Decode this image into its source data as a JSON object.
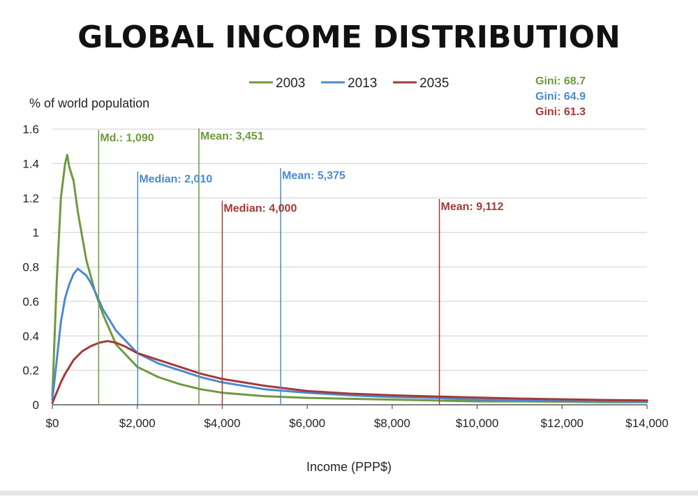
{
  "chart_data": {
    "type": "line",
    "title": "GLOBAL INCOME DISTRIBUTION",
    "xlabel": "Income (PPP$)",
    "ylabel": "% of world population",
    "xlim": [
      0,
      14000
    ],
    "ylim": [
      0,
      1.6
    ],
    "x_ticks": [
      0,
      2000,
      4000,
      6000,
      8000,
      10000,
      12000,
      14000
    ],
    "x_tick_labels": [
      "$0",
      "$2,000",
      "$4,000",
      "$6,000",
      "$8,000",
      "$10,000",
      "$12,000",
      "$14,000"
    ],
    "y_ticks": [
      0,
      0.2,
      0.4,
      0.6,
      0.8,
      1,
      1.2,
      1.4,
      1.6
    ],
    "y_tick_labels": [
      "0",
      "0.2",
      "0.4",
      "0.6",
      "0.8",
      "1",
      "1.2",
      "1.4",
      "1.6"
    ],
    "grid": true,
    "legend_position": "top-center",
    "series": [
      {
        "name": "2003",
        "color": "#6e9a3c",
        "x": [
          0,
          100,
          200,
          300,
          350,
          400,
          500,
          600,
          700,
          800,
          1000,
          1200,
          1500,
          2000,
          2500,
          3000,
          3500,
          4000,
          5000,
          6000,
          7000,
          8000,
          9000,
          10000,
          11000,
          12000,
          13000,
          14000
        ],
        "y": [
          0.05,
          0.7,
          1.2,
          1.4,
          1.45,
          1.38,
          1.3,
          1.12,
          0.98,
          0.84,
          0.66,
          0.52,
          0.35,
          0.22,
          0.16,
          0.12,
          0.09,
          0.07,
          0.05,
          0.04,
          0.035,
          0.03,
          0.025,
          0.02,
          0.02,
          0.018,
          0.015,
          0.015
        ]
      },
      {
        "name": "2013",
        "color": "#4a8ad0",
        "x": [
          0,
          100,
          200,
          300,
          400,
          500,
          600,
          700,
          800,
          900,
          1000,
          1200,
          1500,
          2000,
          2500,
          3000,
          3500,
          4000,
          5000,
          6000,
          7000,
          8000,
          9000,
          10000,
          11000,
          12000,
          13000,
          14000
        ],
        "y": [
          0.03,
          0.25,
          0.48,
          0.62,
          0.7,
          0.76,
          0.79,
          0.77,
          0.75,
          0.71,
          0.66,
          0.55,
          0.43,
          0.3,
          0.24,
          0.2,
          0.16,
          0.13,
          0.09,
          0.07,
          0.055,
          0.045,
          0.04,
          0.03,
          0.025,
          0.022,
          0.02,
          0.018
        ]
      },
      {
        "name": "2035",
        "color": "#a23a38",
        "x": [
          0,
          100,
          200,
          300,
          500,
          700,
          900,
          1100,
          1300,
          1500,
          1700,
          2000,
          2500,
          3000,
          3500,
          4000,
          4500,
          5000,
          6000,
          7000,
          8000,
          9000,
          10000,
          11000,
          12000,
          13000,
          14000
        ],
        "y": [
          0.01,
          0.07,
          0.13,
          0.18,
          0.26,
          0.31,
          0.34,
          0.36,
          0.37,
          0.36,
          0.34,
          0.3,
          0.26,
          0.22,
          0.18,
          0.15,
          0.13,
          0.11,
          0.08,
          0.065,
          0.055,
          0.048,
          0.042,
          0.036,
          0.032,
          0.028,
          0.025
        ]
      }
    ],
    "vertical_markers": [
      {
        "label": "Md.: 1,090",
        "x": 1090,
        "color": "#6e9a3c",
        "label_y": 1.57
      },
      {
        "label": "Mean: 3,451",
        "x": 3451,
        "color": "#6e9a3c",
        "label_y": 1.58
      },
      {
        "label": "Median: 2,010",
        "x": 2010,
        "color": "#4a8ad0",
        "label_y": 1.33
      },
      {
        "label": "Mean: 5,375",
        "x": 5375,
        "color": "#4a8ad0",
        "label_y": 1.35
      },
      {
        "label": "Median: 4,000",
        "x": 4000,
        "color": "#a23a38",
        "label_y": 1.16
      },
      {
        "label": "Mean: 9,112",
        "x": 9112,
        "color": "#a23a38",
        "label_y": 1.17
      }
    ],
    "gini": [
      {
        "label": "Gini: 68.7",
        "color": "#6e9a3c"
      },
      {
        "label": "Gini: 64.9",
        "color": "#4a8ad0"
      },
      {
        "label": "Gini: 61.3",
        "color": "#a23a38"
      }
    ]
  }
}
